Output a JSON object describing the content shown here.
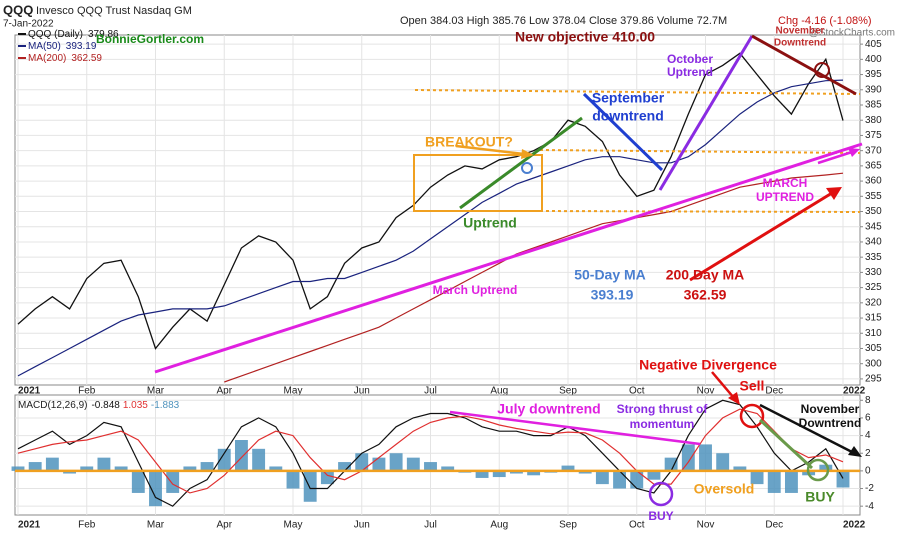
{
  "header": {
    "symbol": "QQQ",
    "name": "Invesco QQQ Trust Nasdaq GM",
    "date": "7-Jan-2022",
    "quote": "Open 384.03 High 385.76 Low 378.04 Close 379.86 Volume 72.7M",
    "change": "Chg -4.16 (-1.08%)",
    "source": "@StockCharts.com"
  },
  "chart_data": [
    {
      "type": "line",
      "grid": true,
      "categories": [
        "2021",
        null,
        null,
        null,
        "Feb",
        null,
        null,
        null,
        "Mar",
        null,
        null,
        null,
        "Apr",
        null,
        null,
        null,
        "May",
        null,
        null,
        null,
        "Jun",
        null,
        null,
        null,
        "Jul",
        null,
        null,
        null,
        "Aug",
        null,
        null,
        null,
        "Sep",
        null,
        null,
        null,
        "Oct",
        null,
        null,
        null,
        "Nov",
        null,
        null,
        null,
        "Dec",
        null,
        null,
        null,
        "2022"
      ],
      "ylim": [
        293,
        408
      ],
      "yticks": [
        295,
        300,
        305,
        310,
        315,
        320,
        325,
        330,
        335,
        340,
        345,
        350,
        355,
        360,
        365,
        370,
        375,
        380,
        385,
        390,
        395,
        400,
        405
      ],
      "series": [
        {
          "name": "QQQ (Daily)",
          "color": "#111111",
          "values": [
            313,
            318,
            322,
            318,
            328,
            333,
            334,
            322,
            305,
            312,
            318,
            314,
            326,
            338,
            342,
            340,
            334,
            318,
            322,
            333,
            338,
            340,
            348,
            352,
            358,
            362,
            365,
            364,
            367,
            368,
            370,
            373,
            380,
            378,
            373,
            362,
            355,
            357,
            368,
            382,
            395,
            398,
            402,
            395,
            388,
            382,
            392,
            400,
            379.86
          ]
        },
        {
          "name": "MA(50)",
          "color": "#1a237e",
          "values": [
            296,
            299,
            302,
            305,
            308,
            311,
            314,
            316,
            317,
            318,
            318,
            318,
            319,
            321,
            323,
            325,
            327,
            327,
            328,
            328,
            330,
            332,
            334,
            337,
            341,
            345,
            349,
            353,
            356,
            359,
            361,
            363,
            365,
            367,
            368,
            368,
            367,
            366,
            366,
            368,
            372,
            377,
            382,
            386,
            389,
            391,
            392,
            393,
            393.19
          ]
        },
        {
          "name": "MA(200)",
          "color": "#b22222",
          "values": [
            null,
            null,
            null,
            null,
            null,
            null,
            null,
            null,
            null,
            null,
            null,
            null,
            294,
            296,
            298,
            300,
            302,
            304,
            306,
            308,
            310,
            312,
            315,
            318,
            321,
            324,
            327,
            330,
            333,
            336,
            338,
            340,
            342,
            344,
            346,
            347,
            348,
            349,
            350,
            352,
            354,
            356,
            358,
            359,
            360,
            361,
            361.5,
            362,
            362.59
          ]
        }
      ],
      "annotations": [
        {
          "text": "BonnieGortler.com",
          "color": "#1a8a1a"
        },
        {
          "text": "New objective 410.00",
          "color": "#8b1010"
        },
        {
          "text": "November",
          "color": "#c03030"
        },
        {
          "text": "Downtrend",
          "color": "#c03030"
        },
        {
          "text": "October",
          "color": "#8a2be2"
        },
        {
          "text": "Uptrend",
          "color": "#8a2be2"
        },
        {
          "text": "September",
          "color": "#1f3fd0"
        },
        {
          "text": "downtrend",
          "color": "#1f3fd0"
        },
        {
          "text": "BREAKOUT?",
          "color": "#f0a020"
        },
        {
          "text": "Uptrend",
          "color": "#3a8a2a"
        },
        {
          "text": "MARCH",
          "color": "#e020e0"
        },
        {
          "text": "UPTREND",
          "color": "#e020e0"
        },
        {
          "text": "March Uptrend",
          "color": "#e020e0"
        },
        {
          "text": "50-Day MA",
          "color": "#4a7fd0"
        },
        {
          "text": "393.19",
          "color": "#4a7fd0"
        },
        {
          "text": "200 Day MA",
          "color": "#cc1111"
        },
        {
          "text": "362.59",
          "color": "#cc1111"
        },
        {
          "text": "Negative Divergence",
          "color": "#e01010"
        },
        {
          "text": "Sell",
          "color": "#e01010"
        }
      ]
    },
    {
      "type": "line",
      "grid": true,
      "title": "MACD(12,26,9)",
      "categories": [
        "2021",
        null,
        null,
        null,
        "Feb",
        null,
        null,
        null,
        "Mar",
        null,
        null,
        null,
        "Apr",
        null,
        null,
        null,
        "May",
        null,
        null,
        null,
        "Jun",
        null,
        null,
        null,
        "Jul",
        null,
        null,
        null,
        "Aug",
        null,
        null,
        null,
        "Sep",
        null,
        null,
        null,
        "Oct",
        null,
        null,
        null,
        "Nov",
        null,
        null,
        null,
        "Dec",
        null,
        null,
        null,
        "2022"
      ],
      "ylim": [
        -5,
        8.6
      ],
      "yticks": [
        -4,
        -2,
        0,
        2,
        4,
        6,
        8
      ],
      "series": [
        {
          "type": "bar",
          "color": "#4f93bd",
          "values": [
            0.5,
            1,
            1.5,
            -0.3,
            0.5,
            1.5,
            0.5,
            -2.5,
            -4,
            -2.5,
            0.5,
            1,
            2.5,
            3.5,
            2.5,
            0.5,
            -2,
            -3.5,
            -1.5,
            1,
            2,
            1.5,
            2,
            1.5,
            1,
            0.5,
            -0.2,
            -0.8,
            -0.7,
            -0.3,
            -0.5,
            -0.2,
            0.6,
            -0.3,
            -1.5,
            -2,
            -2,
            -1,
            1.5,
            3,
            3,
            2,
            0.5,
            -1.5,
            -2.5,
            -2.5,
            -0.5,
            0.7,
            -1.883
          ]
        },
        {
          "color": "#111111",
          "values": [
            2.5,
            3.5,
            4.5,
            3,
            4,
            5.5,
            5,
            1,
            -3,
            -4,
            -2,
            -1,
            2,
            5,
            6,
            5,
            2,
            -2,
            -2,
            0,
            2,
            3,
            5,
            6,
            6.5,
            6.5,
            6,
            5,
            4.5,
            4.5,
            4,
            4,
            5,
            4,
            2,
            0,
            -2,
            -2.5,
            0,
            4,
            7,
            8,
            7.5,
            5,
            2,
            0,
            1,
            2.5,
            -0.848
          ]
        },
        {
          "color": "#e03030",
          "values": [
            2,
            2.5,
            3,
            3.3,
            3.5,
            4,
            4.5,
            3.5,
            1,
            -1.5,
            -2.5,
            -2,
            -0.5,
            1.5,
            3.5,
            4.5,
            4,
            1.5,
            -0.5,
            -1,
            0,
            1.5,
            3,
            4.5,
            5.5,
            6,
            6.2,
            5.8,
            5.2,
            4.8,
            4.5,
            4.2,
            4.4,
            4.3,
            3.5,
            2,
            0,
            -1.5,
            -1.5,
            1,
            4,
            6,
            7,
            6.5,
            4.5,
            2.5,
            1.5,
            1.8,
            1.035
          ]
        }
      ],
      "annotations": [
        {
          "text": "July downtrend",
          "color": "#e020e0"
        },
        {
          "text": "Strong thrust of",
          "color": "#8a2be2"
        },
        {
          "text": "momentum",
          "color": "#8a2be2"
        },
        {
          "text": "November",
          "color": "#111111"
        },
        {
          "text": "Downtrend",
          "color": "#111111"
        },
        {
          "text": "Oversold",
          "color": "#f0a020"
        },
        {
          "text": "BUY",
          "color": "#8a2be2"
        },
        {
          "text": "BUY",
          "color": "#4a8a2a"
        }
      ]
    }
  ]
}
